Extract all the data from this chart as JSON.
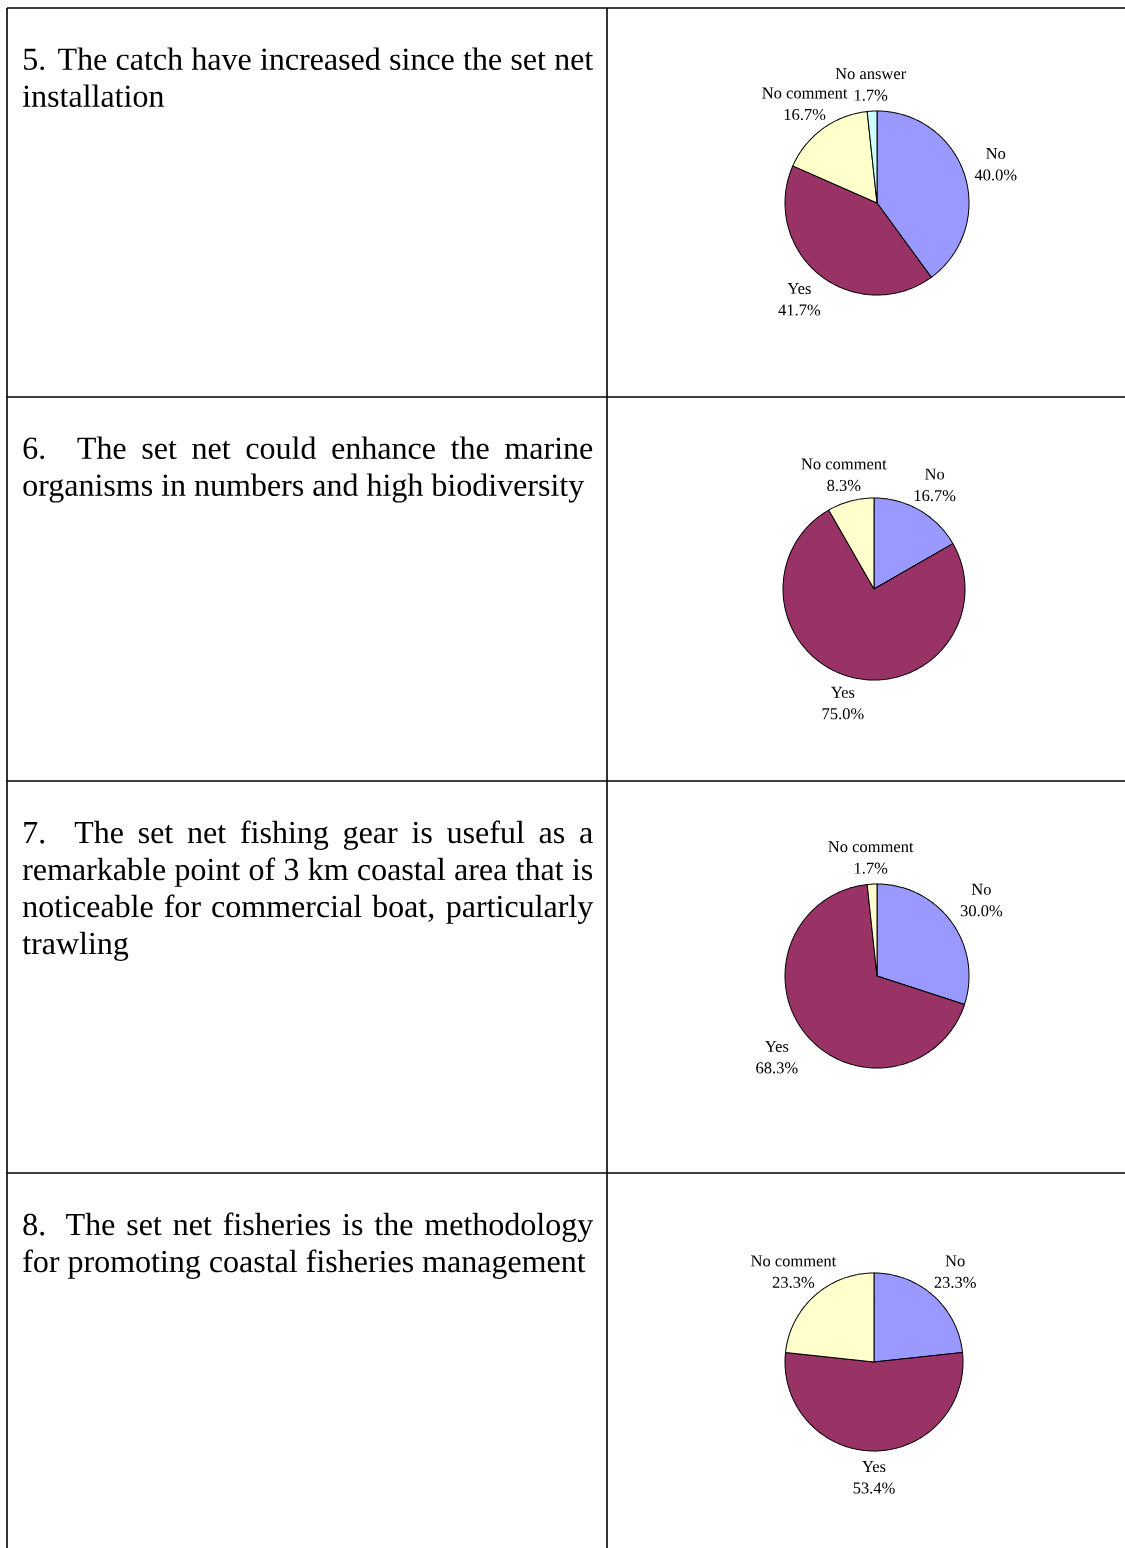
{
  "chart_data": [
    {
      "type": "pie",
      "title": "5. The catch have increased since the set net installation",
      "categories": [
        "No",
        "Yes",
        "No comment",
        "No answer"
      ],
      "values": [
        40.0,
        41.7,
        16.7,
        1.7
      ],
      "colors": [
        "#9999ff",
        "#993366",
        "#ffffcc",
        "#ccffff"
      ],
      "value_labels": [
        "40.0%",
        "41.7%",
        "16.7%",
        "1.7%"
      ]
    },
    {
      "type": "pie",
      "title": "6. The set net could enhance the marine organisms in numbers and high biodiversity",
      "categories": [
        "No",
        "Yes",
        "No comment"
      ],
      "values": [
        16.7,
        75.0,
        8.3
      ],
      "colors": [
        "#9999ff",
        "#993366",
        "#ffffcc"
      ],
      "value_labels": [
        "16.7%",
        "75.0%",
        "8.3%"
      ]
    },
    {
      "type": "pie",
      "title": "7. The set net fishing gear is useful as a remarkable point of 3 km coastal area that is noticeable for commercial boat, particularly trawling",
      "categories": [
        "No",
        "Yes",
        "No comment"
      ],
      "values": [
        30.0,
        68.3,
        1.7
      ],
      "colors": [
        "#9999ff",
        "#993366",
        "#ffffcc"
      ],
      "value_labels": [
        "30.0%",
        "68.3%",
        "1.7%"
      ]
    },
    {
      "type": "pie",
      "title": "8. The set net fisheries is the methodology for promoting coastal fisheries management",
      "categories": [
        "No",
        "Yes",
        "No comment"
      ],
      "values": [
        23.3,
        53.4,
        23.3
      ],
      "colors": [
        "#9999ff",
        "#993366",
        "#ffffcc"
      ],
      "value_labels": [
        "23.3%",
        "53.4%",
        "23.3%"
      ]
    }
  ]
}
